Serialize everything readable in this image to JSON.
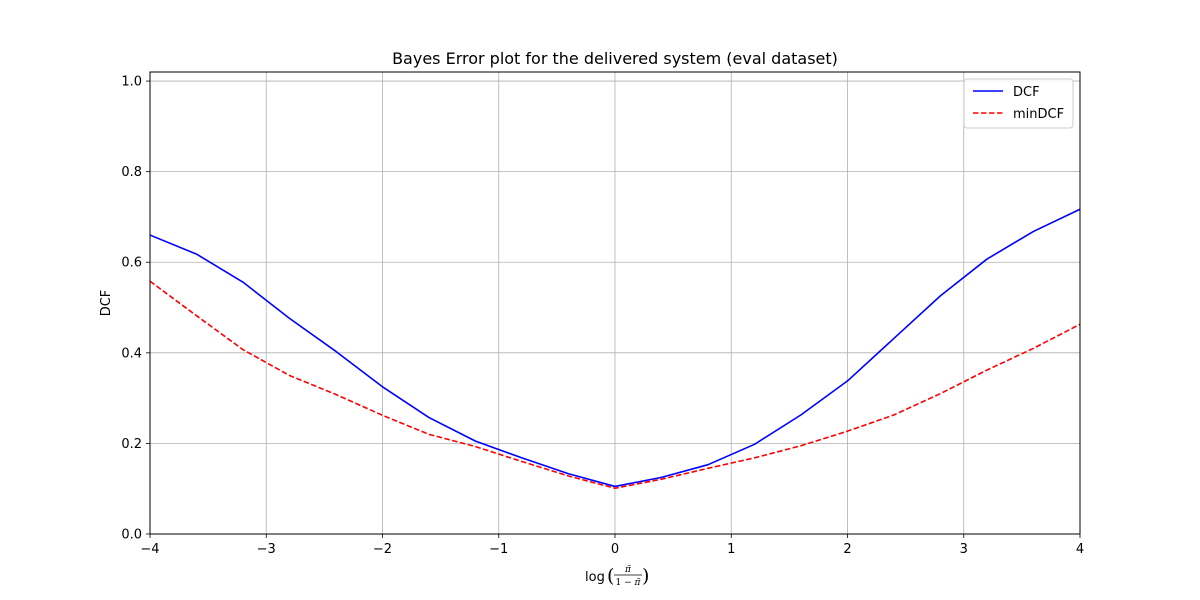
{
  "chart_data": {
    "type": "line",
    "title": "Bayes Error plot for the delivered system (eval dataset)",
    "xlabel": "",
    "ylabel": "DCF",
    "xlim": [
      -4,
      4
    ],
    "ylim": [
      0.0,
      1.02
    ],
    "xticks": [
      -4,
      -3,
      -2,
      -1,
      0,
      1,
      2,
      3,
      4
    ],
    "xtick_labels": [
      "−4",
      "−3",
      "−2",
      "−1",
      "0",
      "1",
      "2",
      "3",
      "4"
    ],
    "yticks": [
      0.0,
      0.2,
      0.4,
      0.6,
      0.8,
      1.0
    ],
    "ytick_labels": [
      "0.0",
      "0.2",
      "0.4",
      "0.6",
      "0.8",
      "1.0"
    ],
    "grid": true,
    "legend_position": "top-right",
    "x": [
      -4.0,
      -3.6,
      -3.2,
      -2.8,
      -2.4,
      -2.0,
      -1.6,
      -1.2,
      -0.8,
      -0.4,
      0.0,
      0.4,
      0.8,
      1.2,
      1.6,
      2.0,
      2.4,
      2.8,
      3.2,
      3.6,
      4.0
    ],
    "series": [
      {
        "name": "DCF",
        "color": "#0000ff",
        "style": "solid",
        "values": [
          0.66,
          0.618,
          0.556,
          0.476,
          0.403,
          0.325,
          0.257,
          0.205,
          0.168,
          0.133,
          0.105,
          0.125,
          0.153,
          0.198,
          0.263,
          0.338,
          0.432,
          0.526,
          0.607,
          0.668,
          0.717
        ]
      },
      {
        "name": "minDCF",
        "color": "#ff0000",
        "style": "dashed",
        "values": [
          0.558,
          0.482,
          0.407,
          0.35,
          0.308,
          0.262,
          0.22,
          0.193,
          0.16,
          0.128,
          0.101,
          0.121,
          0.145,
          0.168,
          0.195,
          0.227,
          0.263,
          0.31,
          0.362,
          0.41,
          0.463
        ]
      }
    ]
  }
}
